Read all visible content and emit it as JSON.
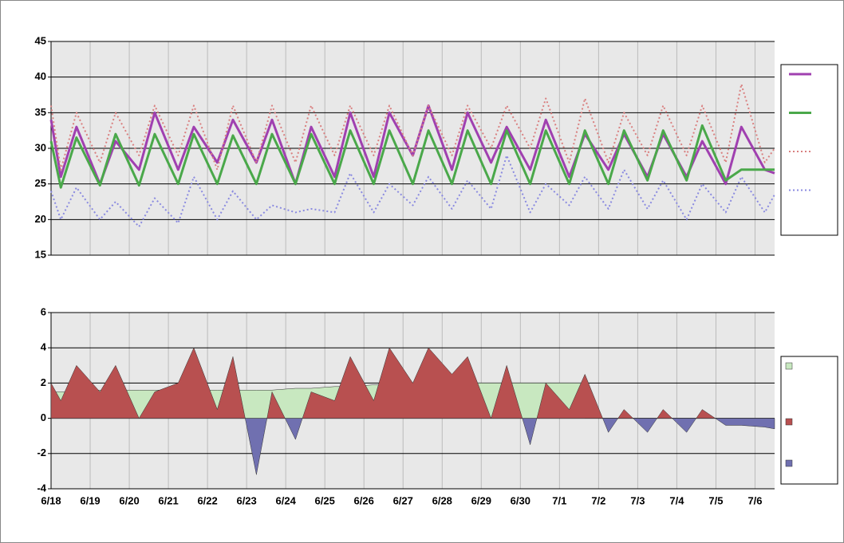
{
  "chart_data": [
    {
      "type": "line",
      "xlim": [
        0,
        18.5
      ],
      "xticks": [
        0,
        1,
        2,
        3,
        4,
        5,
        6,
        7,
        8,
        9,
        10,
        11,
        12,
        13,
        14,
        15,
        16,
        17,
        18
      ],
      "ylim": [
        15,
        45
      ],
      "yticks": [
        15,
        20,
        25,
        30,
        35,
        40,
        45
      ],
      "grid": true,
      "legend": "right",
      "x": [
        0,
        0.25,
        0.65,
        1.25,
        1.65,
        2.25,
        2.65,
        3.25,
        3.65,
        4.25,
        4.65,
        5.25,
        5.65,
        6.25,
        6.65,
        7.25,
        7.65,
        8.25,
        8.65,
        9.25,
        9.65,
        10.25,
        10.65,
        11.25,
        11.65,
        12.25,
        12.65,
        13.25,
        13.65,
        14.25,
        14.65,
        15.25,
        15.65,
        16.25,
        16.65,
        17.25,
        17.65,
        18.25,
        18.5
      ],
      "series": [
        {
          "color": "#a040b0",
          "style": "solid",
          "width": 3,
          "values": [
            34,
            26,
            33,
            25,
            31,
            27,
            35,
            27,
            33,
            28,
            34,
            28,
            34,
            25,
            33,
            26,
            35,
            26,
            35,
            29,
            36,
            27,
            35,
            28,
            33,
            27,
            34,
            26,
            32,
            27,
            32,
            26,
            32,
            26,
            31,
            25,
            33,
            27,
            26.5
          ]
        },
        {
          "color": "#4aa84a",
          "style": "solid",
          "width": 3,
          "values": [
            31,
            24.5,
            31.5,
            24.8,
            32,
            24.8,
            32,
            25,
            32,
            25,
            31.8,
            25,
            32,
            25,
            32,
            25,
            32.5,
            25,
            32.5,
            25,
            32.5,
            25,
            32.5,
            25,
            32.5,
            25,
            32.5,
            25,
            32.5,
            25,
            32.5,
            25.5,
            32.5,
            25.5,
            33.2,
            25.5,
            27,
            27,
            27
          ]
        },
        {
          "color": "#d98080",
          "style": "dotted",
          "width": 2,
          "values": [
            36,
            27,
            35,
            28,
            35,
            29,
            36,
            29,
            36,
            27,
            36,
            28,
            36,
            28,
            36,
            29,
            36,
            29,
            36,
            29,
            36,
            29,
            36,
            30,
            36,
            30,
            37,
            28,
            37,
            28,
            35,
            29,
            36,
            29,
            36,
            28,
            39,
            28,
            30
          ]
        },
        {
          "color": "#8a8ae0",
          "style": "dotted",
          "width": 2,
          "values": [
            24,
            20,
            24.5,
            20,
            22.5,
            19,
            23,
            19.5,
            26,
            20,
            24,
            20,
            22,
            21,
            21.5,
            21,
            26.5,
            21,
            25,
            22,
            26,
            21.5,
            25.5,
            21.5,
            29,
            21,
            25,
            22,
            26,
            21.5,
            27,
            21.5,
            25.5,
            20,
            25,
            21,
            26,
            21,
            23.5
          ]
        }
      ]
    },
    {
      "type": "area",
      "xlim": [
        0,
        18.5
      ],
      "xticks": [
        {
          "value": 0,
          "label": "6/18"
        },
        {
          "value": 1,
          "label": "6/19"
        },
        {
          "value": 2,
          "label": "6/20"
        },
        {
          "value": 3,
          "label": "6/21"
        },
        {
          "value": 4,
          "label": "6/22"
        },
        {
          "value": 5,
          "label": "6/23"
        },
        {
          "value": 6,
          "label": "6/24"
        },
        {
          "value": 7,
          "label": "6/25"
        },
        {
          "value": 8,
          "label": "6/26"
        },
        {
          "value": 9,
          "label": "6/27"
        },
        {
          "value": 10,
          "label": "6/28"
        },
        {
          "value": 11,
          "label": "6/29"
        },
        {
          "value": 12,
          "label": "6/30"
        },
        {
          "value": 13,
          "label": "7/1"
        },
        {
          "value": 14,
          "label": "7/2"
        },
        {
          "value": 15,
          "label": "7/3"
        },
        {
          "value": 16,
          "label": "7/4"
        },
        {
          "value": 17,
          "label": "7/5"
        },
        {
          "value": 18,
          "label": "7/6"
        }
      ],
      "ylim": [
        -4,
        6
      ],
      "yticks": [
        -4,
        -2,
        0,
        2,
        4,
        6
      ],
      "grid": true,
      "legend": "right",
      "x": [
        0,
        0.25,
        0.65,
        1.25,
        1.65,
        2.25,
        2.65,
        3.25,
        3.65,
        4.25,
        4.65,
        5.25,
        5.65,
        6.25,
        6.65,
        7.25,
        7.65,
        8.25,
        8.65,
        9.25,
        9.65,
        10.25,
        10.65,
        11.25,
        11.65,
        12.25,
        12.65,
        13.25,
        13.65,
        14.25,
        14.65,
        15.25,
        15.65,
        16.25,
        16.65,
        17.25,
        17.65,
        18.25,
        18.5
      ],
      "series": [
        {
          "color": "#c8e8c0",
          "values": [
            1.5,
            1.5,
            1.5,
            1.6,
            1.6,
            1.6,
            1.6,
            1.6,
            1.6,
            1.6,
            1.6,
            1.6,
            1.6,
            1.7,
            1.7,
            1.8,
            1.8,
            1.9,
            1.9,
            2,
            2,
            2,
            2,
            2,
            2,
            2,
            2,
            2,
            2,
            null,
            null,
            null,
            null,
            null,
            null,
            null,
            null,
            null,
            null
          ]
        },
        {
          "color": "#b85050",
          "negative_color": "#7070b0",
          "values": [
            2,
            1,
            3,
            1.5,
            3,
            0,
            1.5,
            2,
            4,
            0.5,
            3.5,
            -3.2,
            1.5,
            -1.2,
            1.5,
            1,
            3.5,
            1,
            4,
            2,
            4,
            2.5,
            3.5,
            0,
            3,
            -1.5,
            2,
            0.5,
            2.5,
            -0.8,
            0.5,
            -0.8,
            0.5,
            -0.8,
            0.5,
            -0.4,
            -0.4,
            -0.5,
            -0.6
          ]
        }
      ]
    }
  ]
}
